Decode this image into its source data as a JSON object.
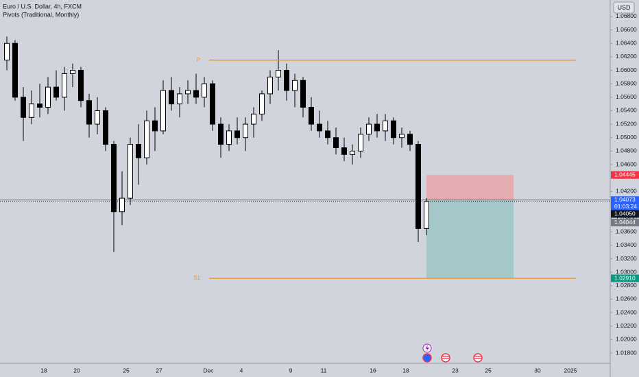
{
  "chart_data": {
    "type": "candlestick",
    "title": "Euro / U.S. Dollar, 4h, FXCM",
    "subtitle": "Pivots (Traditional, Monthly)",
    "currency": "USD",
    "up_color": "#ffffff",
    "down_color": "#000000",
    "categories": [
      null,
      null,
      null,
      null,
      "18",
      null,
      null,
      null,
      "20",
      null,
      null,
      null,
      null,
      null,
      "25",
      null,
      null,
      null,
      "27",
      null,
      null,
      null,
      null,
      null,
      "Dec",
      null,
      null,
      null,
      "4",
      null,
      null,
      null,
      null,
      null,
      "9",
      null,
      null,
      null,
      "11",
      null,
      null,
      null,
      null,
      null,
      "16",
      null,
      null,
      null,
      "18",
      null,
      null,
      null,
      null,
      null,
      "23",
      null,
      null,
      null,
      "25",
      null,
      null,
      null,
      null,
      null,
      "30",
      null,
      null,
      null,
      "2025",
      null,
      null,
      null,
      null
    ],
    "open": [
      1.0615,
      1.064,
      1.056,
      1.053,
      1.055,
      1.0545,
      1.0575,
      1.056,
      1.0595,
      1.06,
      1.0555,
      1.052,
      1.054,
      1.049,
      1.039,
      1.041,
      1.049,
      1.047,
      1.0525,
      1.051,
      1.057,
      1.055,
      1.0565,
      1.057,
      1.056,
      1.058,
      1.052,
      1.049,
      1.051,
      1.05,
      1.052,
      1.0535,
      1.0565,
      1.059,
      1.06,
      1.057,
      1.0585,
      1.0545,
      1.052,
      1.051,
      1.05,
      1.0485,
      1.0475,
      1.048,
      1.0505,
      1.052,
      1.051,
      1.0525,
      1.05,
      1.0505,
      1.049,
      1.0365,
      null,
      null,
      null,
      null,
      null,
      null,
      null,
      null,
      null,
      null,
      null,
      null,
      null,
      null,
      null,
      null,
      null,
      null,
      null,
      null,
      null
    ],
    "high": [
      1.065,
      1.0645,
      1.0575,
      1.057,
      1.058,
      1.059,
      1.06,
      1.0605,
      1.061,
      1.0605,
      1.0565,
      1.056,
      1.0545,
      1.0495,
      1.045,
      1.05,
      1.052,
      1.054,
      1.0545,
      1.0585,
      1.059,
      1.0575,
      1.0585,
      1.0595,
      1.059,
      1.0585,
      1.053,
      1.052,
      1.053,
      1.053,
      1.0545,
      1.057,
      1.06,
      1.063,
      1.061,
      1.0595,
      1.059,
      1.056,
      1.054,
      1.0525,
      1.0515,
      1.05,
      1.049,
      1.0515,
      1.053,
      1.0535,
      1.0535,
      1.053,
      1.0515,
      1.051,
      1.0495,
      1.041,
      null,
      null,
      null,
      null,
      null,
      null,
      null,
      null,
      null,
      null,
      null,
      null,
      null,
      null,
      null,
      null,
      null,
      null,
      null,
      null,
      null
    ],
    "low": [
      1.06,
      1.0555,
      1.0495,
      1.052,
      1.053,
      1.0535,
      1.0555,
      1.054,
      1.0575,
      1.0545,
      1.05,
      1.0505,
      1.048,
      1.033,
      1.037,
      1.04,
      1.043,
      1.046,
      1.048,
      1.0505,
      1.054,
      1.053,
      1.055,
      1.055,
      1.0545,
      1.051,
      1.047,
      1.048,
      1.049,
      1.048,
      1.05,
      1.0525,
      1.055,
      1.057,
      1.0555,
      1.0545,
      1.053,
      1.051,
      1.05,
      1.049,
      1.0475,
      1.0465,
      1.046,
      1.047,
      1.0495,
      1.05,
      1.0495,
      1.049,
      1.0485,
      1.048,
      1.0345,
      1.0355,
      null,
      null,
      null,
      null,
      null,
      null,
      null,
      null,
      null,
      null,
      null,
      null,
      null,
      null,
      null,
      null,
      null,
      null,
      null,
      null,
      null
    ],
    "close": [
      1.064,
      1.056,
      1.053,
      1.055,
      1.0545,
      1.0575,
      1.056,
      1.0595,
      1.06,
      1.0555,
      1.052,
      1.054,
      1.049,
      1.039,
      1.041,
      1.049,
      1.047,
      1.0525,
      1.051,
      1.057,
      1.055,
      1.0565,
      1.057,
      1.056,
      1.058,
      1.052,
      1.049,
      1.051,
      1.05,
      1.052,
      1.0535,
      1.0565,
      1.059,
      1.06,
      1.057,
      1.0585,
      1.0545,
      1.052,
      1.051,
      1.05,
      1.0485,
      1.0475,
      1.048,
      1.0505,
      1.052,
      1.051,
      1.0525,
      1.05,
      1.0505,
      1.049,
      1.0365,
      1.0405,
      null,
      null,
      null,
      null,
      null,
      null,
      null,
      null,
      null,
      null,
      null,
      null,
      null,
      null,
      null,
      null,
      null,
      null,
      null,
      null,
      null
    ],
    "ylim": [
      1.01668,
      1.07044
    ],
    "yticks": [
      {
        "value": 1.068,
        "label": "1.06800"
      },
      {
        "value": 1.066,
        "label": "1.06600"
      },
      {
        "value": 1.064,
        "label": "1.06400"
      },
      {
        "value": 1.062,
        "label": "1.06200"
      },
      {
        "value": 1.06,
        "label": "1.06000"
      },
      {
        "value": 1.058,
        "label": "1.05800"
      },
      {
        "value": 1.056,
        "label": "1.05600"
      },
      {
        "value": 1.054,
        "label": "1.05400"
      },
      {
        "value": 1.052,
        "label": "1.05200"
      },
      {
        "value": 1.05,
        "label": "1.05000"
      },
      {
        "value": 1.048,
        "label": "1.04800"
      },
      {
        "value": 1.046,
        "label": "1.04600"
      },
      {
        "value": 1.042,
        "label": "1.04200"
      },
      {
        "value": 1.038,
        "label": "1.03800"
      },
      {
        "value": 1.036,
        "label": "1.03600"
      },
      {
        "value": 1.034,
        "label": "1.03400"
      },
      {
        "value": 1.032,
        "label": "1.03200"
      },
      {
        "value": 1.03,
        "label": "1.03000"
      },
      {
        "value": 1.028,
        "label": "1.02800"
      },
      {
        "value": 1.026,
        "label": "1.02600"
      },
      {
        "value": 1.024,
        "label": "1.02400"
      },
      {
        "value": 1.022,
        "label": "1.02200"
      },
      {
        "value": 1.02,
        "label": "1.02000"
      },
      {
        "value": 1.018,
        "label": "1.01800"
      }
    ],
    "pivots": [
      {
        "name": "P",
        "value": 1.0615,
        "color": "#f7931a"
      },
      {
        "name": "S1",
        "value": 1.0291,
        "color": "#f7931a"
      }
    ],
    "position": {
      "stop": 1.04445,
      "entry": 1.04073,
      "target": 1.0291,
      "stop_color": "#e8a3a8",
      "target_color": "#9ec7c8"
    },
    "last_price": 1.0405,
    "countdown": "01:03:24",
    "price_labels": [
      {
        "value": 1.04445,
        "label": "1.04445",
        "color": "#f23645"
      },
      {
        "value": 1.04073,
        "label": "1.04073",
        "color": "#2962ff"
      },
      {
        "value": 1.0405,
        "label": "1.04050",
        "color": "#131722"
      },
      {
        "value": 1.04044,
        "label": "1.04044",
        "color": "#787b86"
      },
      {
        "value": 1.0291,
        "label": "1.02910",
        "color": "#089981"
      }
    ]
  }
}
